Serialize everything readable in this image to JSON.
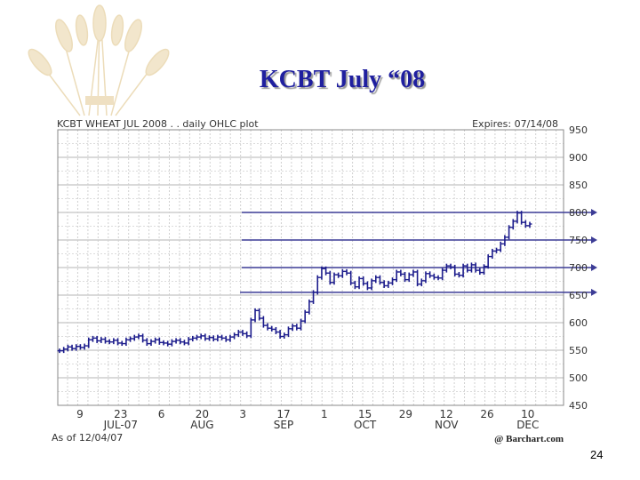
{
  "slide": {
    "title": "KCBT July “08",
    "page_number": "24"
  },
  "colors": {
    "title": "#1f1f9f",
    "price": "#1c1c8c",
    "grid": "#b4b4b4",
    "reference_lines": "#3c3c96",
    "background_art": "#f2e6cc"
  },
  "background_art": "wheat-sheaf-icon",
  "chart_data": {
    "type": "line",
    "style": "ohlc",
    "title": "KCBT WHEAT JUL 2008 . . daily OHLC plot",
    "expires_label": "Expires: 07/14/08",
    "as_of_label": "As of 12/04/07",
    "source_label": "@ Barchart.com",
    "ylim": [
      450,
      950
    ],
    "y_ticks": [
      950,
      900,
      850,
      800,
      750,
      700,
      650,
      600,
      550,
      500,
      450
    ],
    "y_ticks_overlap_lines": [
      800,
      750,
      700,
      650
    ],
    "grid": true,
    "x_day_ticks": [
      "9",
      "23",
      "6",
      "20",
      "3",
      "17",
      "1",
      "15",
      "29",
      "12",
      "26",
      "10"
    ],
    "x_month_labels": [
      {
        "label": "JUL-07",
        "under_tick": 1
      },
      {
        "label": "AUG",
        "under_tick": 3
      },
      {
        "label": "SEP",
        "under_tick": 5
      },
      {
        "label": "OCT",
        "under_tick": 7
      },
      {
        "label": "NOV",
        "under_tick": 9
      },
      {
        "label": "DEC",
        "under_tick": 11
      }
    ],
    "reference_lines": [
      800,
      750,
      700,
      655
    ],
    "series": [
      {
        "values": [
          549,
          552,
          556,
          553,
          557,
          555,
          558,
          569,
          572,
          567,
          570,
          566,
          565,
          568,
          563,
          562,
          569,
          571,
          574,
          576,
          568,
          562,
          566,
          569,
          564,
          563,
          561,
          566,
          568,
          565,
          563,
          570,
          572,
          574,
          576,
          571,
          573,
          570,
          574,
          572,
          569,
          574,
          578,
          583,
          580,
          576,
          605,
          622,
          608,
          595,
          590,
          588,
          583,
          575,
          578,
          589,
          594,
          590,
          603,
          619,
          638,
          655,
          682,
          698,
          690,
          673,
          687,
          685,
          693,
          690,
          672,
          665,
          680,
          671,
          663,
          676,
          682,
          673,
          667,
          672,
          678,
          692,
          688,
          678,
          687,
          692,
          670,
          676,
          689,
          685,
          682,
          681,
          695,
          703,
          701,
          688,
          686,
          703,
          695,
          705,
          695,
          691,
          702,
          720,
          730,
          732,
          743,
          755,
          773,
          784,
          799,
          782,
          776,
          779
        ]
      }
    ]
  }
}
